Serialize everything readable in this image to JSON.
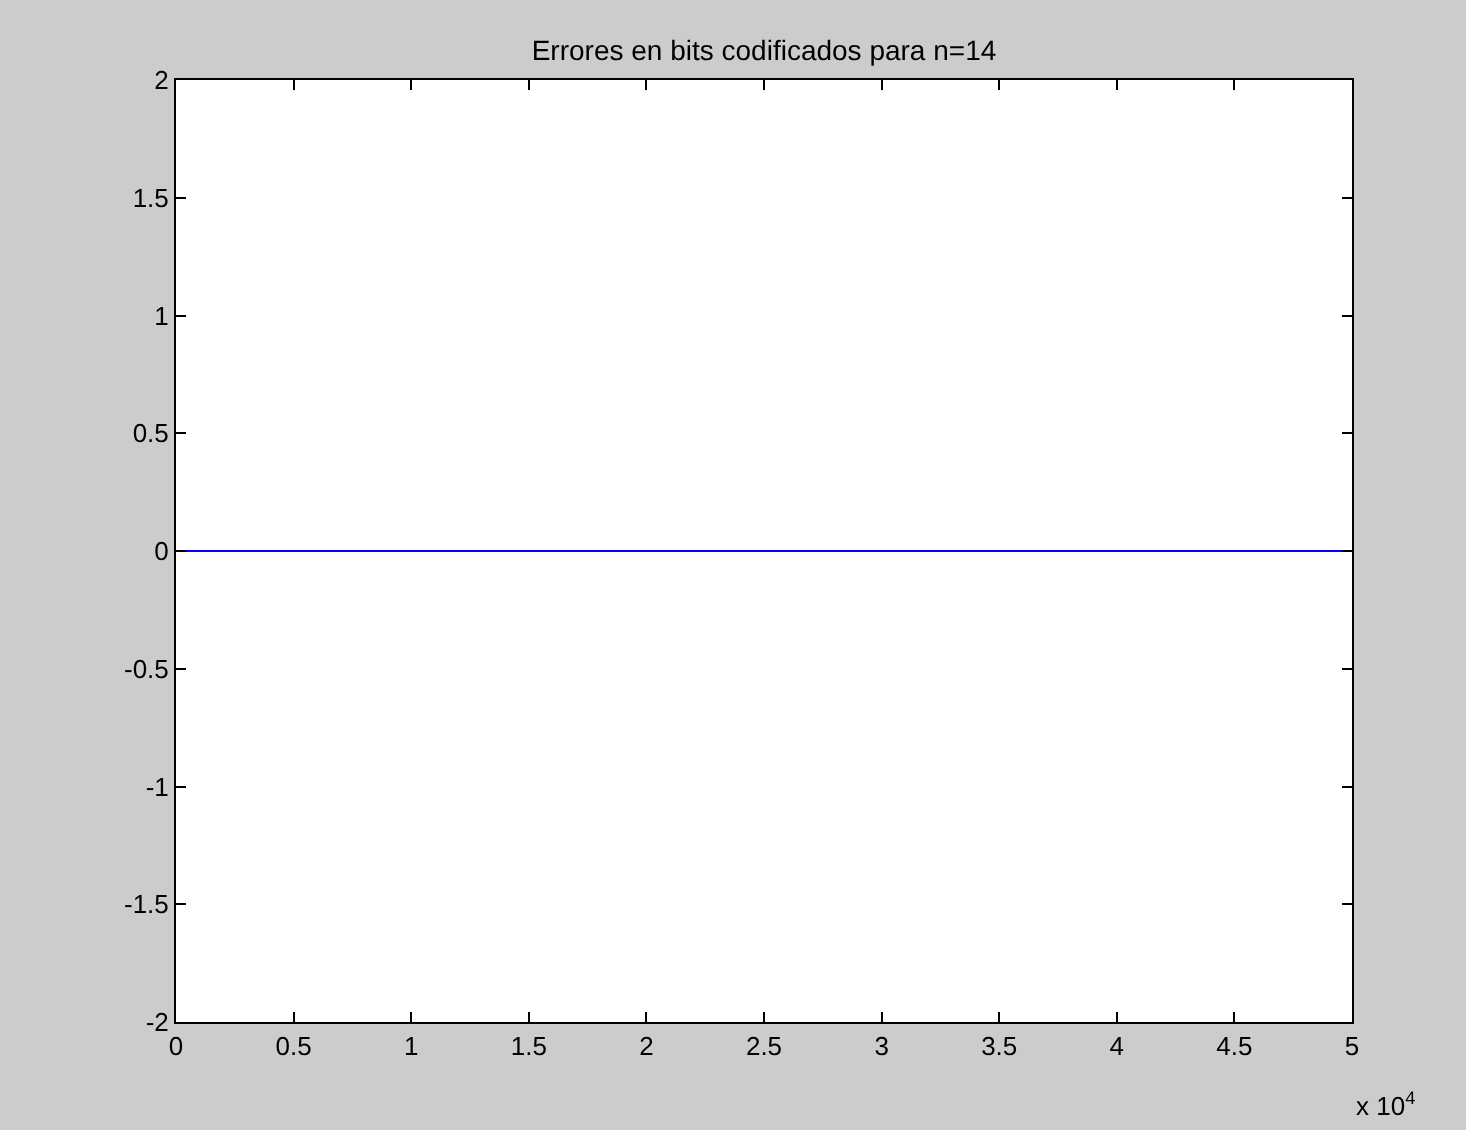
{
  "chart_data": {
    "type": "line",
    "title": "Errores en bits codificados para n=14",
    "x": [
      0,
      5
    ],
    "series": [
      {
        "color": "#0000ff",
        "values": [
          0,
          0
        ]
      }
    ],
    "xlim": [
      0,
      5
    ],
    "xticks": [
      0,
      0.5,
      1,
      1.5,
      2,
      2.5,
      3,
      3.5,
      4,
      4.5,
      5
    ],
    "ylim": [
      -2,
      2
    ],
    "yticks": [
      -2,
      -1.5,
      -1,
      -0.5,
      0,
      0.5,
      1,
      1.5,
      2
    ],
    "annotations": [
      "x 10$^{4}$"
    ],
    "marker": "none",
    "line_style": "solid"
  }
}
